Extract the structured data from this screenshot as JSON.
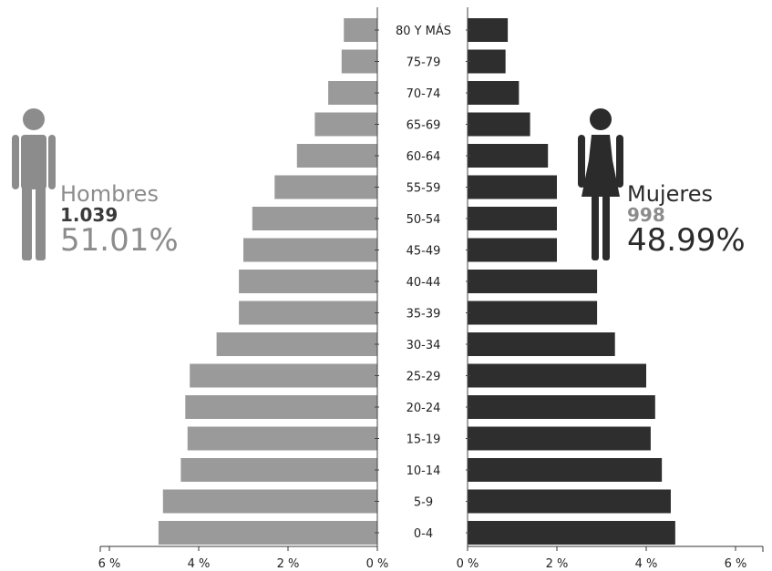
{
  "chart_data": {
    "type": "bar",
    "subtype": "population-pyramid",
    "categories": [
      "0-4",
      "5-9",
      "10-14",
      "15-19",
      "20-24",
      "25-29",
      "30-34",
      "35-39",
      "40-44",
      "45-49",
      "50-54",
      "55-59",
      "60-64",
      "65-69",
      "70-74",
      "75-79",
      "80 Y MÁS"
    ],
    "series": [
      {
        "name": "Hombres",
        "color": "#9a9a9a",
        "values": [
          4.9,
          4.8,
          4.4,
          4.25,
          4.3,
          4.2,
          3.6,
          3.1,
          3.1,
          3.0,
          2.8,
          2.3,
          1.8,
          1.4,
          1.1,
          0.8,
          0.75
        ]
      },
      {
        "name": "Mujeres",
        "color": "#2e2e2e",
        "values": [
          4.65,
          4.55,
          4.35,
          4.1,
          4.2,
          4.0,
          3.3,
          2.9,
          2.9,
          2.0,
          2.0,
          2.0,
          1.8,
          1.4,
          1.15,
          0.85,
          0.9
        ]
      }
    ],
    "xlim": [
      0,
      6
    ],
    "left_ticks": [
      "6 %",
      "4 %",
      "2 %",
      "0 %"
    ],
    "right_ticks": [
      "0 %",
      "2 %",
      "4 %",
      "6 %"
    ],
    "left_tick_values": [
      6,
      4,
      2,
      0
    ],
    "right_tick_values": [
      0,
      2,
      4,
      6
    ],
    "title": "",
    "xlabel": "",
    "ylabel": ""
  },
  "legend": {
    "male": {
      "label": "Hombres",
      "count": "1.039",
      "percent": "51.01%",
      "icon": "male-person-icon"
    },
    "female": {
      "label": "Mujeres",
      "count": "998",
      "percent": "48.99%",
      "icon": "female-person-icon"
    }
  }
}
